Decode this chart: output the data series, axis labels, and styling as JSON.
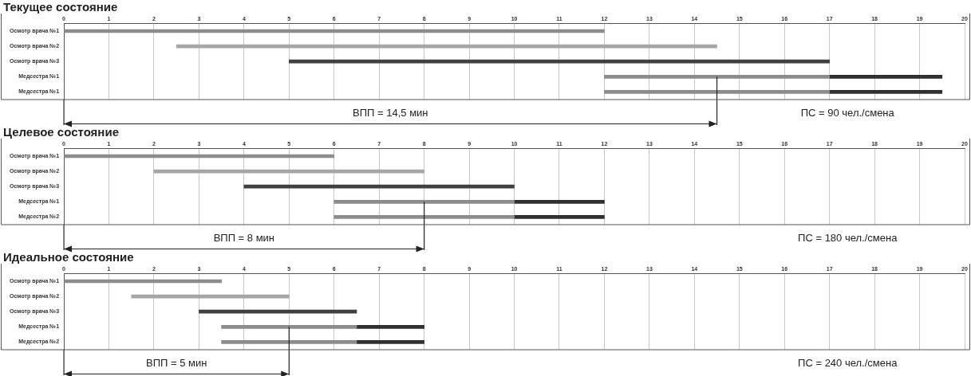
{
  "chart_data": [
    {
      "type": "bar",
      "orientation": "horizontal",
      "title": "Текущее состояние",
      "categories": [
        "Осмотр врача №1",
        "Осмотр врача №2",
        "Осмотр врача №3",
        "Медсестра №1",
        "Медсестра №1"
      ],
      "series": [
        {
          "colors": [
            "#8c8c8c",
            "#a6a6a6",
            "#404040",
            "#8c8c8c",
            "#8c8c8c"
          ],
          "base": [
            0,
            2.5,
            5,
            12,
            12
          ],
          "values": [
            12,
            12,
            12,
            5,
            5
          ]
        },
        {
          "colors": [
            null,
            null,
            null,
            "#303030",
            "#303030"
          ],
          "base": [
            null,
            null,
            null,
            17,
            17
          ],
          "values": [
            null,
            null,
            null,
            2.5,
            2.5
          ]
        }
      ],
      "xlim": [
        0,
        20
      ],
      "xticks": [
        0,
        1,
        2,
        3,
        4,
        5,
        6,
        7,
        8,
        9,
        10,
        11,
        12,
        13,
        14,
        15,
        16,
        17,
        18,
        19,
        20
      ],
      "grid": "x",
      "ref_lines": [
        {
          "axis": "x",
          "value": 14.5,
          "label": "ВПП = 14,5 мин"
        }
      ],
      "annotations": [
        "ПС = 90 чел./смена"
      ]
    },
    {
      "type": "bar",
      "orientation": "horizontal",
      "title": "Целевое состояние",
      "categories": [
        "Осмотр врача №1",
        "Осмотр врача №2",
        "Осмотр врача №3",
        "Медсестра №1",
        "Медсестра №2"
      ],
      "series": [
        {
          "colors": [
            "#8c8c8c",
            "#a6a6a6",
            "#404040",
            "#8c8c8c",
            "#8c8c8c"
          ],
          "base": [
            0,
            2,
            4,
            6,
            6
          ],
          "values": [
            6,
            6,
            6,
            4,
            4
          ]
        },
        {
          "colors": [
            null,
            null,
            null,
            "#303030",
            "#303030"
          ],
          "base": [
            null,
            null,
            null,
            10,
            10
          ],
          "values": [
            null,
            null,
            null,
            2,
            2
          ]
        }
      ],
      "xlim": [
        0,
        20
      ],
      "xticks": [
        0,
        1,
        2,
        3,
        4,
        5,
        6,
        7,
        8,
        9,
        10,
        11,
        12,
        13,
        14,
        15,
        16,
        17,
        18,
        19,
        20
      ],
      "grid": "x",
      "ref_lines": [
        {
          "axis": "x",
          "value": 8,
          "label": "ВПП = 8 мин"
        }
      ],
      "annotations": [
        "ПС = 180 чел./смена"
      ]
    },
    {
      "type": "bar",
      "orientation": "horizontal",
      "title": "Идеальное состояние",
      "categories": [
        "Осмотр врача №1",
        "Осмотр врача №2",
        "Осмотр врача №3",
        "Медсестра №1",
        "Медсестра №2"
      ],
      "series": [
        {
          "colors": [
            "#8c8c8c",
            "#a6a6a6",
            "#404040",
            "#8c8c8c",
            "#8c8c8c"
          ],
          "base": [
            0,
            1.5,
            3,
            3.5,
            3.5
          ],
          "values": [
            3.5,
            3.5,
            3.5,
            3,
            3
          ]
        },
        {
          "colors": [
            null,
            null,
            null,
            "#303030",
            "#303030"
          ],
          "base": [
            null,
            null,
            null,
            6.5,
            6.5
          ],
          "values": [
            null,
            null,
            null,
            1.5,
            1.5
          ]
        }
      ],
      "xlim": [
        0,
        20
      ],
      "xticks": [
        0,
        1,
        2,
        3,
        4,
        5,
        6,
        7,
        8,
        9,
        10,
        11,
        12,
        13,
        14,
        15,
        16,
        17,
        18,
        19,
        20
      ],
      "grid": "x",
      "ref_lines": [
        {
          "axis": "x",
          "value": 5,
          "label": "ВПП = 5 мин"
        }
      ],
      "annotations": [
        "ПС = 240 чел./смена"
      ]
    }
  ]
}
